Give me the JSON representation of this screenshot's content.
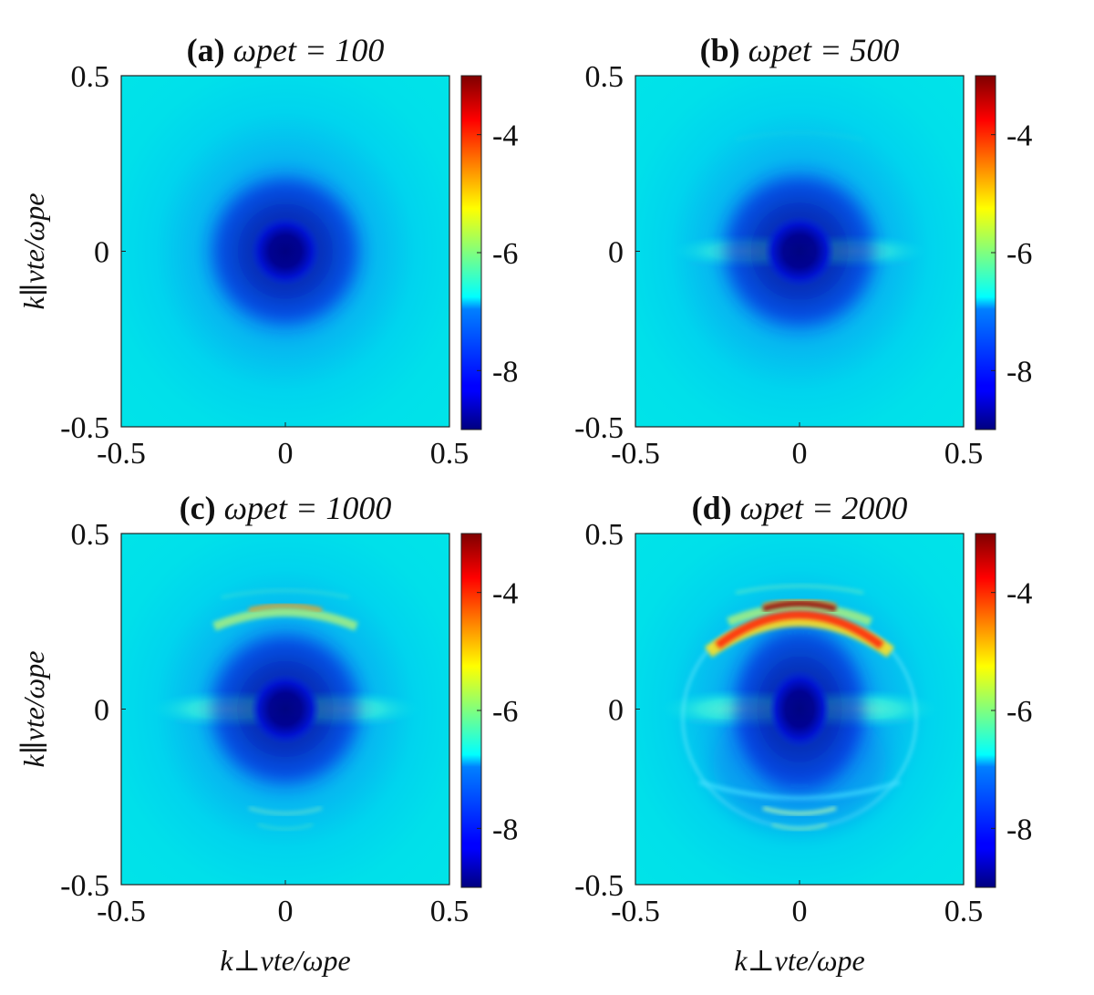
{
  "figure": {
    "ylabel": "k∥vte/ωpe",
    "xlabel": "k⊥vte/ωpe"
  },
  "colormap": "jet",
  "chart_data": [
    {
      "type": "heatmap",
      "panel": "a",
      "title": "(a) ωpet = 100",
      "title_prefix": "(a)",
      "title_expr": "ωpet = 100",
      "xlim": [
        -0.5,
        0.5
      ],
      "ylim": [
        -0.5,
        0.5
      ],
      "xticks": [
        "-0.5",
        "0",
        "0.5"
      ],
      "yticks": [
        "0.5",
        "0",
        "-0.5"
      ],
      "colorbar": {
        "range": [
          -9,
          -3
        ],
        "ticks": [
          "-4",
          "-6",
          "-8"
        ]
      },
      "features": {
        "dark_core": 1.0,
        "side_lobes": 0.0,
        "upper_arc": 0.0,
        "lower_arc": 0.0,
        "ring": 0.0
      }
    },
    {
      "type": "heatmap",
      "panel": "b",
      "title": "(b) ωpet = 500",
      "title_prefix": "(b)",
      "title_expr": "ωpet = 500",
      "xlim": [
        -0.5,
        0.5
      ],
      "ylim": [
        -0.5,
        0.5
      ],
      "xticks": [
        "-0.5",
        "0",
        "0.5"
      ],
      "yticks": [
        "0.5",
        "0",
        "-0.5"
      ],
      "colorbar": {
        "range": [
          -9,
          -3
        ],
        "ticks": [
          "-4",
          "-6",
          "-8"
        ]
      },
      "features": {
        "dark_core": 0.9,
        "side_lobes": 0.5,
        "upper_arc": 0.15,
        "lower_arc": 0.0,
        "ring": 0.0
      }
    },
    {
      "type": "heatmap",
      "panel": "c",
      "title": "(c) ωpet = 1000",
      "title_prefix": "(c)",
      "title_expr": "ωpet = 1000",
      "xlim": [
        -0.5,
        0.5
      ],
      "ylim": [
        -0.5,
        0.5
      ],
      "xticks": [
        "-0.5",
        "0",
        "0.5"
      ],
      "yticks": [
        "0.5",
        "0",
        "-0.5"
      ],
      "colorbar": {
        "range": [
          -9,
          -3
        ],
        "ticks": [
          "-4",
          "-6",
          "-8"
        ]
      },
      "features": {
        "dark_core": 0.95,
        "side_lobes": 0.8,
        "upper_arc": 0.55,
        "lower_arc": 0.2,
        "ring": 0.0
      }
    },
    {
      "type": "heatmap",
      "panel": "d",
      "title": "(d) ωpet = 2000",
      "title_prefix": "(d)",
      "title_expr": "ωpet = 2000",
      "xlim": [
        -0.5,
        0.5
      ],
      "ylim": [
        -0.5,
        0.5
      ],
      "xticks": [
        "-0.5",
        "0",
        "0.5"
      ],
      "yticks": [
        "0.5",
        "0",
        "-0.5"
      ],
      "colorbar": {
        "range": [
          -9,
          -3
        ],
        "ticks": [
          "-4",
          "-6",
          "-8"
        ]
      },
      "features": {
        "dark_core": 1.0,
        "side_lobes": 1.0,
        "upper_arc": 1.0,
        "lower_arc": 0.45,
        "ring": 1.0
      }
    }
  ]
}
